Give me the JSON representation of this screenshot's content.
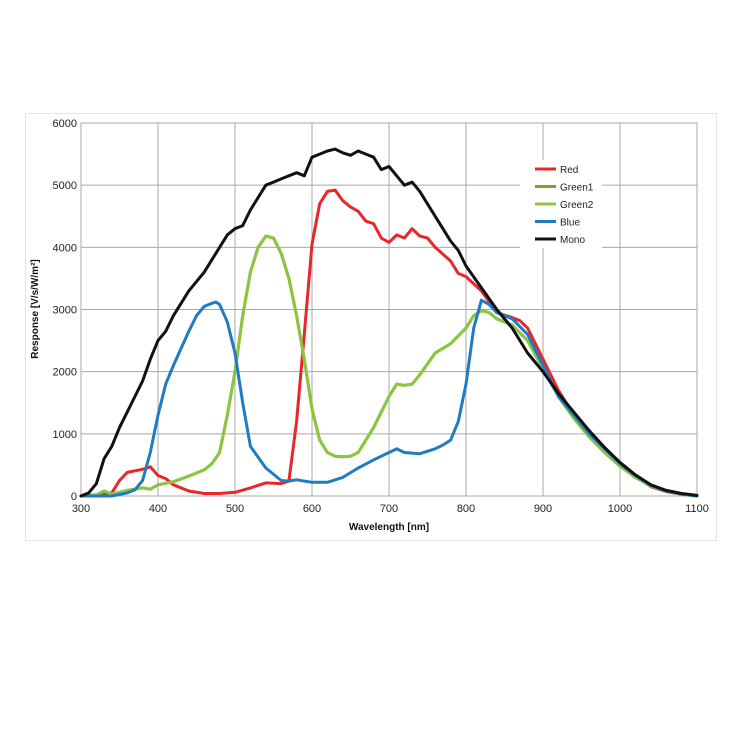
{
  "chart_data": {
    "type": "line",
    "xlabel": "Wavelength [nm]",
    "ylabel": "Response [V/s/W/m²]",
    "xlim": [
      300,
      1100
    ],
    "ylim": [
      0,
      6000
    ],
    "x_ticks": [
      "300",
      "400",
      "500",
      "600",
      "700",
      "800",
      "900",
      "1000",
      "1100"
    ],
    "y_ticks": [
      "0",
      "1000",
      "2000",
      "3000",
      "4000",
      "5000",
      "6000"
    ],
    "grid": true,
    "legend_position": "top-right",
    "series": [
      {
        "name": "Red",
        "color": "#e8262b",
        "x": [
          300,
          320,
          340,
          350,
          360,
          380,
          390,
          400,
          410,
          420,
          440,
          460,
          480,
          500,
          520,
          540,
          560,
          570,
          580,
          590,
          600,
          610,
          620,
          630,
          640,
          650,
          660,
          670,
          680,
          690,
          700,
          710,
          720,
          730,
          740,
          750,
          760,
          780,
          790,
          800,
          820,
          840,
          860,
          870,
          880,
          900,
          920,
          930,
          940,
          960,
          980,
          1000,
          1020,
          1040,
          1060,
          1080,
          1100
        ],
        "y": [
          0,
          0,
          50,
          250,
          380,
          430,
          470,
          330,
          280,
          180,
          80,
          40,
          40,
          60,
          130,
          210,
          200,
          240,
          1200,
          2600,
          4050,
          4700,
          4900,
          4920,
          4750,
          4650,
          4580,
          4420,
          4380,
          4150,
          4080,
          4200,
          4150,
          4300,
          4180,
          4150,
          4000,
          3780,
          3580,
          3530,
          3300,
          2950,
          2870,
          2820,
          2700,
          2200,
          1700,
          1500,
          1300,
          1000,
          750,
          500,
          320,
          150,
          70,
          30,
          0
        ]
      },
      {
        "name": "Green1",
        "color": "#6ea832",
        "x": [
          300,
          320,
          330,
          340,
          360,
          380,
          390,
          400,
          420,
          440,
          460,
          470,
          480,
          490,
          500,
          510,
          520,
          530,
          540,
          550,
          560,
          570,
          580,
          590,
          600,
          610,
          620,
          630,
          640,
          650,
          660,
          680,
          700,
          710,
          720,
          730,
          740,
          760,
          780,
          800,
          810,
          820,
          830,
          840,
          860,
          880,
          900,
          920,
          940,
          960,
          980,
          1000,
          1020,
          1040,
          1060,
          1080,
          1100
        ],
        "y": [
          0,
          20,
          80,
          30,
          90,
          130,
          110,
          180,
          230,
          320,
          420,
          520,
          700,
          1300,
          2000,
          2900,
          3600,
          4000,
          4180,
          4150,
          3900,
          3500,
          2900,
          2200,
          1400,
          900,
          700,
          640,
          630,
          640,
          700,
          1100,
          1600,
          1800,
          1780,
          1800,
          1950,
          2300,
          2450,
          2700,
          2900,
          2980,
          2950,
          2850,
          2750,
          2500,
          2050,
          1600,
          1250,
          950,
          700,
          480,
          300,
          160,
          80,
          30,
          0
        ]
      },
      {
        "name": "Green2",
        "color": "#8cc63f",
        "x": [
          300,
          320,
          330,
          340,
          360,
          380,
          390,
          400,
          420,
          440,
          460,
          470,
          480,
          490,
          500,
          510,
          520,
          530,
          540,
          550,
          560,
          570,
          580,
          590,
          600,
          610,
          620,
          630,
          640,
          650,
          660,
          680,
          700,
          710,
          720,
          730,
          740,
          760,
          780,
          800,
          810,
          820,
          830,
          840,
          860,
          880,
          900,
          920,
          940,
          960,
          980,
          1000,
          1020,
          1040,
          1060,
          1080,
          1100
        ],
        "y": [
          0,
          20,
          80,
          30,
          90,
          130,
          110,
          180,
          230,
          320,
          420,
          520,
          700,
          1300,
          2000,
          2900,
          3600,
          4000,
          4180,
          4150,
          3900,
          3500,
          2900,
          2200,
          1400,
          900,
          700,
          640,
          630,
          640,
          700,
          1100,
          1600,
          1800,
          1780,
          1800,
          1950,
          2300,
          2450,
          2700,
          2900,
          2980,
          2950,
          2850,
          2750,
          2500,
          2050,
          1600,
          1250,
          950,
          700,
          480,
          300,
          160,
          80,
          30,
          0
        ]
      },
      {
        "name": "Blue",
        "color": "#1f7cc2",
        "x": [
          300,
          320,
          340,
          360,
          370,
          380,
          390,
          400,
          410,
          420,
          440,
          450,
          460,
          470,
          475,
          480,
          490,
          500,
          510,
          520,
          540,
          560,
          570,
          580,
          600,
          620,
          640,
          660,
          680,
          700,
          710,
          720,
          740,
          760,
          770,
          780,
          790,
          800,
          810,
          820,
          830,
          840,
          860,
          880,
          900,
          920,
          940,
          960,
          980,
          1000,
          1020,
          1040,
          1060,
          1080,
          1100
        ],
        "y": [
          0,
          0,
          0,
          50,
          100,
          250,
          700,
          1300,
          1800,
          2100,
          2650,
          2900,
          3050,
          3100,
          3120,
          3080,
          2800,
          2300,
          1500,
          800,
          450,
          250,
          240,
          260,
          220,
          220,
          300,
          450,
          580,
          700,
          760,
          700,
          680,
          760,
          820,
          900,
          1200,
          1800,
          2700,
          3150,
          3080,
          2950,
          2850,
          2600,
          2100,
          1600,
          1300,
          1000,
          760,
          520,
          330,
          170,
          80,
          30,
          0
        ]
      },
      {
        "name": "Mono",
        "color": "#111111",
        "x": [
          300,
          310,
          320,
          330,
          340,
          350,
          360,
          370,
          380,
          390,
          400,
          410,
          420,
          440,
          460,
          480,
          490,
          500,
          510,
          520,
          530,
          540,
          550,
          560,
          570,
          580,
          590,
          600,
          610,
          620,
          630,
          640,
          650,
          660,
          670,
          680,
          690,
          700,
          710,
          720,
          730,
          740,
          760,
          780,
          790,
          800,
          820,
          840,
          860,
          880,
          900,
          920,
          940,
          960,
          980,
          1000,
          1020,
          1040,
          1060,
          1080,
          1100
        ],
        "y": [
          0,
          50,
          200,
          600,
          800,
          1100,
          1350,
          1600,
          1850,
          2200,
          2500,
          2650,
          2900,
          3300,
          3600,
          4000,
          4200,
          4300,
          4350,
          4600,
          4800,
          5000,
          5050,
          5100,
          5150,
          5200,
          5150,
          5450,
          5500,
          5550,
          5580,
          5520,
          5480,
          5550,
          5500,
          5450,
          5250,
          5300,
          5150,
          5000,
          5050,
          4900,
          4500,
          4100,
          3950,
          3700,
          3350,
          3000,
          2700,
          2300,
          2000,
          1650,
          1350,
          1050,
          780,
          540,
          340,
          180,
          90,
          40,
          10
        ]
      }
    ]
  }
}
